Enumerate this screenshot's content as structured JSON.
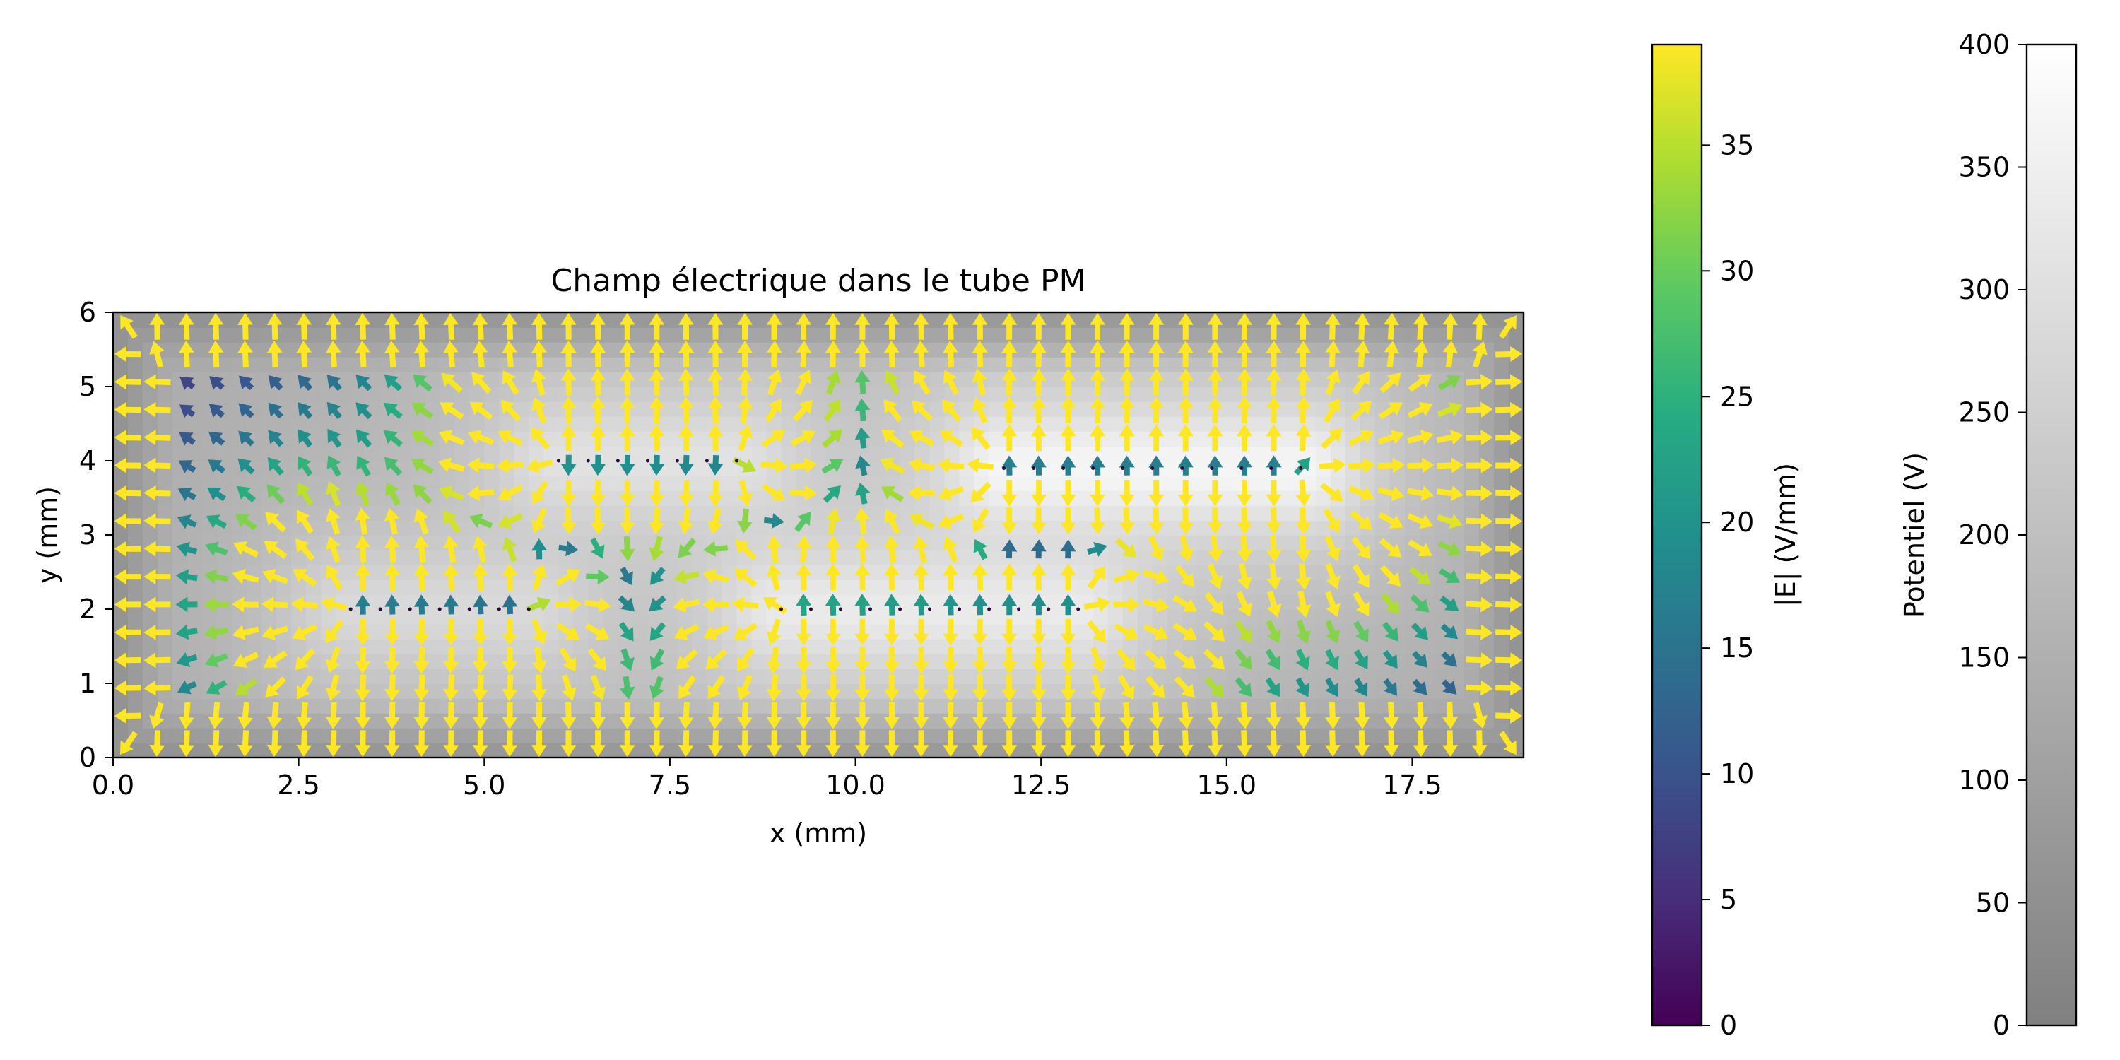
{
  "chart_data": [
    {
      "type": "quiver",
      "title": "Champ électrique dans le tube PM",
      "xlabel": "x (mm)",
      "ylabel": "y (mm)",
      "xlim": [
        0,
        19
      ],
      "ylim": [
        0,
        6
      ],
      "xticks": [
        "0.0",
        "2.5",
        "5.0",
        "7.5",
        "10.0",
        "12.5",
        "15.0",
        "17.5"
      ],
      "yticks": [
        "0",
        "1",
        "2",
        "3",
        "4",
        "5",
        "6"
      ],
      "background": "potential field (gray colormap), bright bands at electrodes",
      "electrodes": [
        {
          "x_range": [
            3.2,
            5.6
          ],
          "y": 2.0,
          "potential": 300
        },
        {
          "x_range": [
            6.0,
            8.4
          ],
          "y": 4.0,
          "potential": 330
        },
        {
          "x_range": [
            9.0,
            13.0
          ],
          "y": 2.0,
          "potential": 360
        },
        {
          "x_range": [
            12.0,
            16.0
          ],
          "y": 3.9,
          "potential": 400
        }
      ],
      "arrow_grid": {
        "nx": 48,
        "ny": 16
      },
      "max_field": 38
    },
    {
      "type": "colorbar",
      "label": "|E| (V/mm)",
      "colormap": "viridis",
      "ticks": [
        "0",
        "5",
        "10",
        "15",
        "20",
        "25",
        "30",
        "35"
      ],
      "range": [
        0,
        39
      ]
    },
    {
      "type": "colorbar",
      "label": "Potentiel (V)",
      "colormap": "gray",
      "ticks": [
        "0",
        "50",
        "100",
        "150",
        "200",
        "250",
        "300",
        "350",
        "400"
      ],
      "range": [
        0,
        400
      ]
    }
  ]
}
